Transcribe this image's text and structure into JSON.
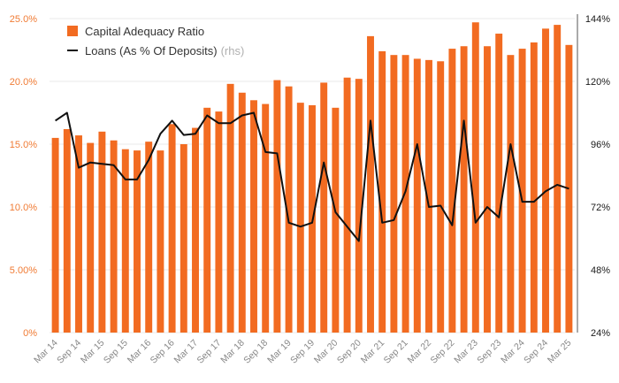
{
  "colors": {
    "bar": "#f26b21",
    "line": "#111111",
    "left_axis": "#f07b34",
    "grid": "#e8e8e8"
  },
  "legend": {
    "bar_label": "Capital Adequacy Ratio",
    "line_label": "Loans (As % Of Deposits)",
    "line_suffix": "(rhs)"
  },
  "chart_data": {
    "type": "bar",
    "left_axis": {
      "ylim": [
        0,
        25
      ],
      "ticks": [
        "0%",
        "5.00%",
        "10.0%",
        "15.0%",
        "20.0%",
        "25.0%"
      ]
    },
    "right_axis": {
      "ylim": [
        24,
        144
      ],
      "ticks": [
        "24%",
        "48%",
        "72%",
        "96%",
        "120%",
        "144%"
      ]
    },
    "x_tick_labels": [
      "Mar 14",
      "Sep 14",
      "Mar 15",
      "Sep 15",
      "Mar 16",
      "Sep 16",
      "Mar 17",
      "Sep 17",
      "Mar 18",
      "Sep 18",
      "Mar 19",
      "Sep 19",
      "Mar 20",
      "Sep 20",
      "Mar 21",
      "Sep 21",
      "Mar 22",
      "Sep 22",
      "Mar 23",
      "Sep 23",
      "Mar 24",
      "Sep 24",
      "Mar 25"
    ],
    "series": [
      {
        "name": "Capital Adequacy Ratio",
        "type": "bar",
        "axis": "left",
        "values": [
          15.5,
          16.2,
          15.7,
          15.1,
          16.0,
          15.3,
          14.6,
          14.5,
          15.2,
          14.5,
          16.6,
          15.0,
          16.3,
          17.9,
          17.6,
          19.8,
          19.1,
          18.5,
          18.2,
          20.1,
          19.6,
          18.3,
          18.1,
          19.9,
          17.9,
          20.3,
          20.2,
          23.6,
          22.4,
          22.1,
          22.1,
          21.8,
          21.7,
          21.6,
          22.6,
          22.8,
          24.7,
          22.8,
          23.8,
          22.1,
          22.6,
          23.1,
          24.2,
          24.5,
          22.9
        ]
      },
      {
        "name": "Loans (As % Of Deposits)",
        "type": "line",
        "axis": "right",
        "values": [
          105,
          108,
          87,
          89,
          88.5,
          88,
          82.5,
          82.5,
          90,
          100,
          105,
          99.5,
          100,
          107,
          104,
          104,
          107,
          108,
          93,
          92.5,
          66,
          64.5,
          66,
          89,
          70,
          64.5,
          59,
          105,
          66,
          67,
          78,
          96,
          72,
          72.5,
          65,
          105,
          66,
          72,
          68,
          96,
          74,
          74,
          78,
          80.5,
          79
        ]
      }
    ]
  }
}
